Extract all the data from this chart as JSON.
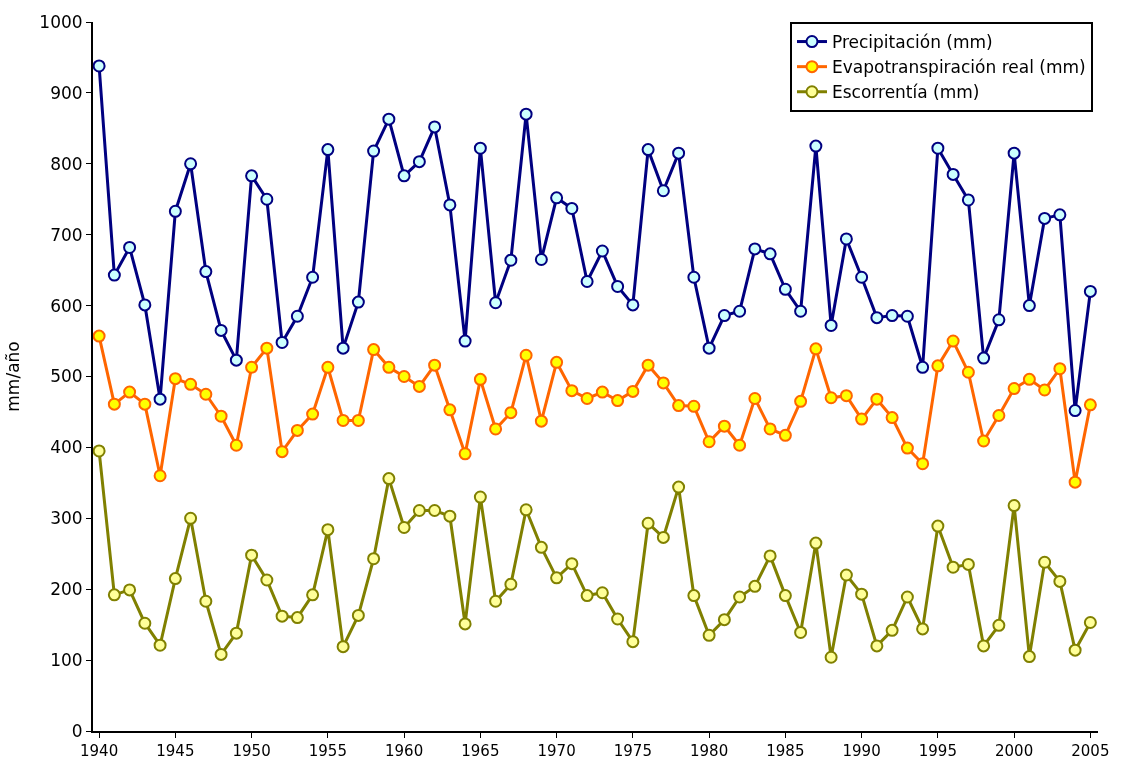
{
  "chart_data": {
    "type": "line",
    "ylabel": "mm/año",
    "x": [
      1940,
      1941,
      1942,
      1943,
      1944,
      1945,
      1946,
      1947,
      1948,
      1949,
      1950,
      1951,
      1952,
      1953,
      1954,
      1955,
      1956,
      1957,
      1958,
      1959,
      1960,
      1961,
      1962,
      1963,
      1964,
      1965,
      1966,
      1967,
      1968,
      1969,
      1970,
      1971,
      1972,
      1973,
      1974,
      1975,
      1976,
      1977,
      1978,
      1979,
      1980,
      1981,
      1982,
      1983,
      1984,
      1985,
      1986,
      1987,
      1988,
      1989,
      1990,
      1991,
      1992,
      1993,
      1994,
      1995,
      1996,
      1997,
      1998,
      1999,
      2000,
      2001,
      2002,
      2003,
      2004,
      2005
    ],
    "series": [
      {
        "name": "Precipitación (mm)",
        "color": "#000080",
        "values": [
          938,
          643,
          682,
          601,
          468,
          733,
          800,
          648,
          565,
          523,
          783,
          750,
          548,
          585,
          640,
          820,
          540,
          605,
          818,
          863,
          783,
          803,
          852,
          742,
          550,
          822,
          604,
          664,
          870,
          665,
          752,
          737,
          634,
          677,
          627,
          601,
          820,
          762,
          815,
          640,
          540,
          586,
          592,
          680,
          673,
          623,
          592,
          825,
          572,
          694,
          640,
          583,
          586,
          585,
          513,
          822,
          785,
          749,
          526,
          580,
          815,
          600,
          723,
          728,
          452,
          620
        ]
      },
      {
        "name": "Evapotranspiración real (mm)",
        "color": "#ff6600",
        "values": [
          557,
          461,
          478,
          461,
          360,
          497,
          489,
          475,
          444,
          403,
          513,
          540,
          394,
          424,
          447,
          513,
          438,
          438,
          538,
          513,
          500,
          486,
          516,
          453,
          391,
          496,
          426,
          449,
          530,
          437,
          520,
          480,
          469,
          478,
          466,
          479,
          516,
          491,
          459,
          458,
          408,
          430,
          403,
          469,
          426,
          417,
          465,
          539,
          470,
          473,
          440,
          468,
          442,
          399,
          377,
          515,
          550,
          506,
          409,
          445,
          483,
          496,
          481,
          511,
          351,
          460
        ]
      },
      {
        "name": "Escorrentía (mm)",
        "color": "#808000",
        "values": [
          395,
          192,
          199,
          152,
          121,
          215,
          300,
          183,
          108,
          138,
          248,
          213,
          162,
          160,
          192,
          284,
          119,
          163,
          243,
          356,
          287,
          311,
          311,
          303,
          151,
          330,
          183,
          207,
          312,
          259,
          216,
          236,
          191,
          195,
          158,
          126,
          293,
          273,
          344,
          191,
          135,
          157,
          189,
          204,
          247,
          191,
          139,
          265,
          104,
          220,
          193,
          120,
          142,
          189,
          144,
          289,
          231,
          235,
          120,
          149,
          318,
          105,
          238,
          211,
          114,
          153
        ]
      }
    ],
    "xlim": [
      1939.6,
      2005.5
    ],
    "xticks": [
      1940,
      1945,
      1950,
      1955,
      1960,
      1965,
      1970,
      1975,
      1980,
      1985,
      1990,
      1995,
      2000,
      2005
    ],
    "ylim": [
      0,
      1000
    ],
    "yticks": [
      0,
      100,
      200,
      300,
      400,
      500,
      600,
      700,
      800,
      900,
      1000
    ],
    "legend": "top right",
    "marker": "circle",
    "line_style": "solid"
  }
}
